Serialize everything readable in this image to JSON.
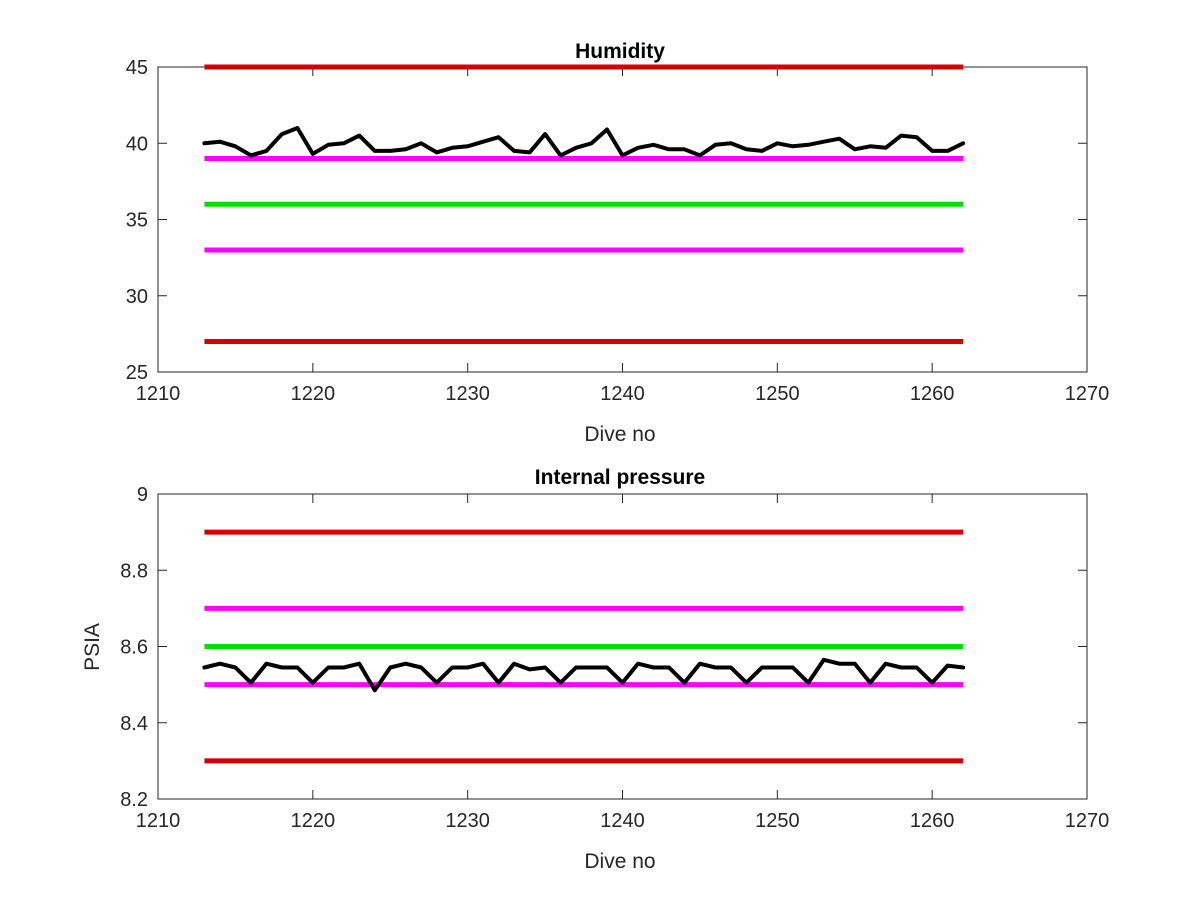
{
  "chart_data": [
    {
      "type": "line",
      "title": "Humidity",
      "xlabel": "Dive no",
      "ylabel": "",
      "xlim": [
        1210,
        1270
      ],
      "ylim": [
        25,
        45
      ],
      "xticks": [
        "1210",
        "1220",
        "1230",
        "1240",
        "1250",
        "1260",
        "1270"
      ],
      "yticks": [
        "25",
        "30",
        "35",
        "40",
        "45"
      ],
      "grid": false,
      "x": [
        1213,
        1214,
        1215,
        1216,
        1217,
        1218,
        1219,
        1220,
        1221,
        1222,
        1223,
        1224,
        1225,
        1226,
        1227,
        1228,
        1229,
        1230,
        1231,
        1232,
        1233,
        1234,
        1235,
        1236,
        1237,
        1238,
        1239,
        1240,
        1241,
        1242,
        1243,
        1244,
        1245,
        1246,
        1247,
        1248,
        1249,
        1250,
        1251,
        1252,
        1253,
        1254,
        1255,
        1256,
        1257,
        1258,
        1259,
        1260,
        1261,
        1262
      ],
      "series": [
        {
          "color": "#000000",
          "values": [
            40.0,
            40.1,
            39.8,
            39.2,
            39.5,
            40.6,
            41.0,
            39.3,
            39.9,
            40.0,
            40.5,
            39.5,
            39.5,
            39.6,
            40.0,
            39.4,
            39.7,
            39.8,
            40.1,
            40.4,
            39.5,
            39.4,
            40.6,
            39.2,
            39.7,
            40.0,
            40.9,
            39.2,
            39.7,
            39.9,
            39.6,
            39.6,
            39.2,
            39.9,
            40.0,
            39.6,
            39.5,
            40.0,
            39.8,
            39.9,
            40.1,
            40.3,
            39.6,
            39.8,
            39.7,
            40.5,
            40.4,
            39.5,
            39.5,
            40.0
          ]
        }
      ],
      "reference_lines": [
        {
          "y": 45,
          "color": "#d40000",
          "x_range": [
            1213,
            1262
          ]
        },
        {
          "y": 39,
          "color": "#ff00ff",
          "x_range": [
            1213,
            1262
          ]
        },
        {
          "y": 36,
          "color": "#00e000",
          "x_range": [
            1213,
            1262
          ]
        },
        {
          "y": 33,
          "color": "#ff00ff",
          "x_range": [
            1213,
            1262
          ]
        },
        {
          "y": 27,
          "color": "#d40000",
          "x_range": [
            1213,
            1262
          ]
        }
      ]
    },
    {
      "type": "line",
      "title": "Internal pressure",
      "xlabel": "Dive no",
      "ylabel": "PSIA",
      "xlim": [
        1210,
        1270
      ],
      "ylim": [
        8.2,
        9
      ],
      "xticks": [
        "1210",
        "1220",
        "1230",
        "1240",
        "1250",
        "1260",
        "1270"
      ],
      "yticks": [
        "8.2",
        "8.4",
        "8.6",
        "8.8",
        "9"
      ],
      "grid": false,
      "x": [
        1213,
        1214,
        1215,
        1216,
        1217,
        1218,
        1219,
        1220,
        1221,
        1222,
        1223,
        1224,
        1225,
        1226,
        1227,
        1228,
        1229,
        1230,
        1231,
        1232,
        1233,
        1234,
        1235,
        1236,
        1237,
        1238,
        1239,
        1240,
        1241,
        1242,
        1243,
        1244,
        1245,
        1246,
        1247,
        1248,
        1249,
        1250,
        1251,
        1252,
        1253,
        1254,
        1255,
        1256,
        1257,
        1258,
        1259,
        1260,
        1261,
        1262
      ],
      "series": [
        {
          "color": "#000000",
          "values": [
            8.545,
            8.555,
            8.545,
            8.505,
            8.555,
            8.545,
            8.545,
            8.505,
            8.545,
            8.545,
            8.555,
            8.485,
            8.545,
            8.555,
            8.545,
            8.505,
            8.545,
            8.545,
            8.555,
            8.505,
            8.555,
            8.54,
            8.545,
            8.505,
            8.545,
            8.545,
            8.545,
            8.505,
            8.555,
            8.545,
            8.545,
            8.505,
            8.555,
            8.545,
            8.545,
            8.505,
            8.545,
            8.545,
            8.545,
            8.505,
            8.565,
            8.555,
            8.555,
            8.505,
            8.555,
            8.545,
            8.545,
            8.505,
            8.55,
            8.545
          ]
        }
      ],
      "reference_lines": [
        {
          "y": 8.9,
          "color": "#d40000",
          "x_range": [
            1213,
            1262
          ]
        },
        {
          "y": 8.7,
          "color": "#ff00ff",
          "x_range": [
            1213,
            1262
          ]
        },
        {
          "y": 8.6,
          "color": "#00e000",
          "x_range": [
            1213,
            1262
          ]
        },
        {
          "y": 8.5,
          "color": "#ff00ff",
          "x_range": [
            1213,
            1262
          ]
        },
        {
          "y": 8.3,
          "color": "#d40000",
          "x_range": [
            1213,
            1262
          ]
        }
      ]
    }
  ]
}
